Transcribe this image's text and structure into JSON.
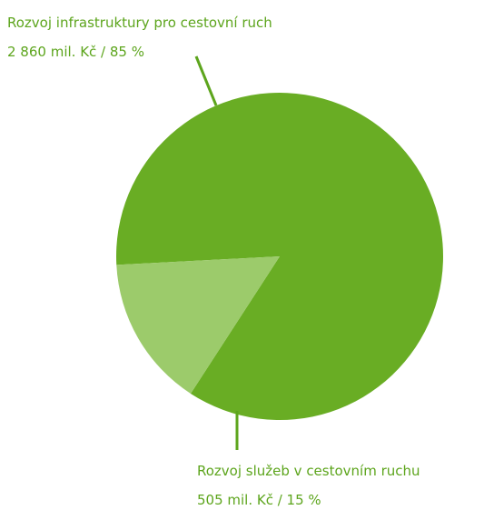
{
  "colors": {
    "slice_main": "#69ad24",
    "slice_minor": "#9ccb6b",
    "label_text": "#5da51d",
    "leader": "#5da51d"
  },
  "chart_data": {
    "type": "pie",
    "title": "",
    "slices": [
      {
        "label": "Rozvoj infrastruktury pro cestovní ruch",
        "value_text": "2 860 mil. Kč / 85 %",
        "value": 2860,
        "percent": 85,
        "color": "#69ad24"
      },
      {
        "label": "Rozvoj služeb v cestovním ruchu",
        "value_text": "505 mil. Kč / 15 %",
        "value": 505,
        "percent": 15,
        "color": "#9ccb6b"
      }
    ],
    "legend": "none"
  }
}
